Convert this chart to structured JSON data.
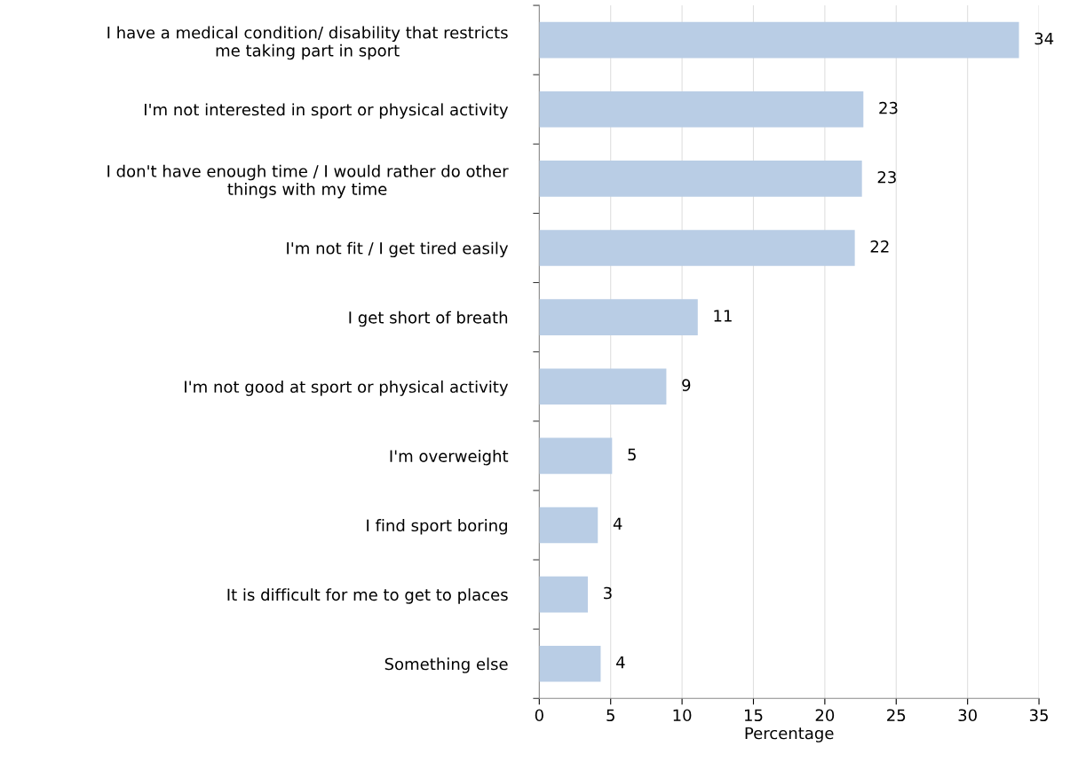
{
  "chart_data": {
    "type": "bar",
    "orientation": "horizontal",
    "xlabel": "Percentage",
    "categories": [
      "I have a medical condition/ disability that restricts\nme taking part in sport",
      "I'm not interested in sport or physical activity",
      "I don't have enough time / I would rather do other\nthings with my time",
      "I'm not fit / I get tired easily",
      "I get short of breath",
      "I'm not good at sport or physical activity",
      "I'm overweight",
      "I find sport boring",
      "It is difficult for me to get to places",
      "Something else"
    ],
    "values": [
      33.6,
      22.7,
      22.6,
      22.1,
      11.1,
      8.9,
      5.1,
      4.1,
      3.4,
      4.3
    ],
    "value_labels": [
      "34",
      "23",
      "23",
      "22",
      "11",
      "9",
      "5",
      "4",
      "3",
      "4"
    ],
    "color": "#b9cde5",
    "xlim": [
      0,
      35
    ],
    "xticks": [
      0,
      5,
      10,
      15,
      20,
      25,
      30,
      35
    ],
    "grid": "x"
  }
}
